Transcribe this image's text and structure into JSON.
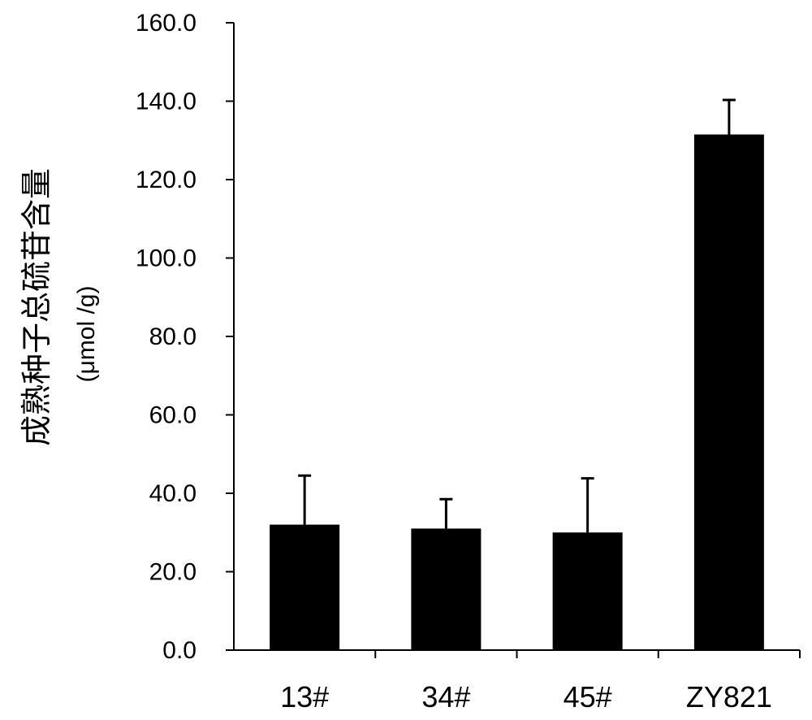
{
  "chart_data": {
    "type": "bar",
    "categories": [
      "13#",
      "34#",
      "45#",
      "ZY821"
    ],
    "values": [
      32.0,
      31.0,
      30.0,
      131.5
    ],
    "errors": [
      12.5,
      7.5,
      13.8,
      8.8
    ],
    "ylabel": "成熟种子总硫苷含量",
    "ylabel_unit": "(μmol /g)",
    "xlabel": "",
    "ylim": [
      0,
      160
    ],
    "yticks": [
      "0.0",
      "20.0",
      "40.0",
      "60.0",
      "80.0",
      "100.0",
      "120.0",
      "140.0",
      "160.0"
    ],
    "grid": false,
    "legend": "none",
    "bar_color": "#000000"
  }
}
